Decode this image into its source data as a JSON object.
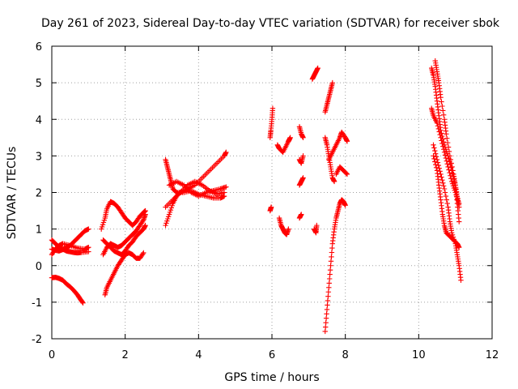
{
  "chart_data": {
    "type": "scatter",
    "title": "Day 261 of 2023, Sidereal Day-to-day VTEC variation (SDTVAR) for receiver sbok",
    "xlabel": "GPS time / hours",
    "ylabel": "SDTVAR / TECUs",
    "xlim": [
      0,
      12
    ],
    "ylim": [
      -2,
      6
    ],
    "xticks": [
      "0",
      "2",
      "4",
      "6",
      "8",
      "10",
      "12"
    ],
    "yticks": [
      "-2",
      "-1",
      "0",
      "1",
      "2",
      "3",
      "4",
      "5",
      "6"
    ],
    "grid": true,
    "marker": "+",
    "color": "#ff0000",
    "series": [
      {
        "points": [
          [
            0.0,
            -0.33
          ],
          [
            0.1,
            -0.32
          ],
          [
            0.2,
            -0.35
          ],
          [
            0.3,
            -0.4
          ],
          [
            0.4,
            -0.5
          ],
          [
            0.5,
            -0.58
          ],
          [
            0.6,
            -0.68
          ],
          [
            0.7,
            -0.8
          ],
          [
            0.78,
            -0.92
          ],
          [
            0.85,
            -1.02
          ]
        ]
      },
      {
        "points": [
          [
            0.0,
            0.45
          ],
          [
            0.1,
            0.42
          ],
          [
            0.2,
            0.4
          ],
          [
            0.3,
            0.44
          ],
          [
            0.4,
            0.5
          ],
          [
            0.5,
            0.55
          ],
          [
            0.6,
            0.65
          ],
          [
            0.7,
            0.75
          ],
          [
            0.8,
            0.85
          ],
          [
            0.9,
            0.95
          ],
          [
            1.0,
            1.0
          ]
        ]
      },
      {
        "points": [
          [
            0.0,
            0.7
          ],
          [
            0.1,
            0.6
          ],
          [
            0.2,
            0.5
          ],
          [
            0.3,
            0.45
          ],
          [
            0.4,
            0.4
          ],
          [
            0.5,
            0.38
          ],
          [
            0.6,
            0.36
          ],
          [
            0.7,
            0.35
          ],
          [
            0.8,
            0.36
          ],
          [
            1.0,
            0.38
          ]
        ]
      },
      {
        "points": [
          [
            0.0,
            0.3
          ],
          [
            0.1,
            0.45
          ],
          [
            0.2,
            0.55
          ],
          [
            0.3,
            0.6
          ],
          [
            0.5,
            0.55
          ],
          [
            0.7,
            0.48
          ],
          [
            0.9,
            0.45
          ],
          [
            1.0,
            0.5
          ]
        ]
      },
      {
        "points": [
          [
            1.35,
            1.0
          ],
          [
            1.45,
            1.3
          ],
          [
            1.5,
            1.55
          ],
          [
            1.6,
            1.75
          ],
          [
            1.7,
            1.7
          ],
          [
            1.8,
            1.6
          ],
          [
            1.9,
            1.45
          ],
          [
            2.0,
            1.3
          ],
          [
            2.1,
            1.2
          ],
          [
            2.2,
            1.1
          ],
          [
            2.3,
            1.2
          ],
          [
            2.4,
            1.35
          ],
          [
            2.5,
            1.45
          ],
          [
            2.55,
            1.5
          ]
        ]
      },
      {
        "points": [
          [
            1.4,
            0.3
          ],
          [
            1.5,
            0.5
          ],
          [
            1.6,
            0.6
          ],
          [
            1.7,
            0.55
          ],
          [
            1.8,
            0.5
          ],
          [
            1.9,
            0.55
          ],
          [
            2.0,
            0.65
          ],
          [
            2.1,
            0.75
          ],
          [
            2.2,
            0.85
          ],
          [
            2.3,
            0.95
          ],
          [
            2.4,
            1.1
          ],
          [
            2.5,
            1.25
          ],
          [
            2.55,
            1.4
          ]
        ]
      },
      {
        "points": [
          [
            1.45,
            -0.8
          ],
          [
            1.5,
            -0.6
          ],
          [
            1.6,
            -0.4
          ],
          [
            1.7,
            -0.2
          ],
          [
            1.8,
            0.0
          ],
          [
            1.9,
            0.15
          ],
          [
            2.0,
            0.3
          ],
          [
            2.1,
            0.35
          ],
          [
            2.2,
            0.3
          ],
          [
            2.3,
            0.2
          ],
          [
            2.4,
            0.2
          ],
          [
            2.5,
            0.35
          ]
        ]
      },
      {
        "points": [
          [
            1.4,
            0.7
          ],
          [
            1.5,
            0.6
          ],
          [
            1.6,
            0.5
          ],
          [
            1.7,
            0.4
          ],
          [
            1.8,
            0.35
          ],
          [
            1.9,
            0.3
          ],
          [
            2.0,
            0.4
          ],
          [
            2.1,
            0.55
          ],
          [
            2.2,
            0.65
          ],
          [
            2.3,
            0.8
          ],
          [
            2.4,
            0.9
          ],
          [
            2.5,
            1.0
          ],
          [
            2.55,
            1.1
          ]
        ]
      },
      {
        "points": [
          [
            3.1,
            2.9
          ],
          [
            3.15,
            2.7
          ],
          [
            3.2,
            2.5
          ],
          [
            3.25,
            2.3
          ],
          [
            3.3,
            2.1
          ],
          [
            3.4,
            2.0
          ],
          [
            3.6,
            2.0
          ],
          [
            3.8,
            2.05
          ],
          [
            4.0,
            1.95
          ],
          [
            4.2,
            1.9
          ],
          [
            4.4,
            1.85
          ],
          [
            4.6,
            1.85
          ],
          [
            4.7,
            1.9
          ]
        ]
      },
      {
        "points": [
          [
            3.1,
            1.1
          ],
          [
            3.2,
            1.4
          ],
          [
            3.3,
            1.7
          ],
          [
            3.4,
            1.9
          ],
          [
            3.5,
            2.0
          ],
          [
            3.7,
            2.1
          ],
          [
            3.9,
            2.2
          ],
          [
            4.1,
            2.4
          ],
          [
            4.3,
            2.6
          ],
          [
            4.5,
            2.8
          ],
          [
            4.7,
            3.0
          ],
          [
            4.75,
            3.1
          ]
        ]
      },
      {
        "points": [
          [
            3.2,
            2.2
          ],
          [
            3.4,
            2.3
          ],
          [
            3.6,
            2.2
          ],
          [
            3.8,
            2.0
          ],
          [
            4.0,
            1.9
          ],
          [
            4.2,
            2.0
          ],
          [
            4.4,
            2.05
          ],
          [
            4.6,
            2.1
          ],
          [
            4.75,
            2.15
          ]
        ]
      },
      {
        "points": [
          [
            3.1,
            1.6
          ],
          [
            3.3,
            1.8
          ],
          [
            3.5,
            2.0
          ],
          [
            3.7,
            2.2
          ],
          [
            3.9,
            2.3
          ],
          [
            4.1,
            2.2
          ],
          [
            4.3,
            2.05
          ],
          [
            4.5,
            1.95
          ],
          [
            4.7,
            2.0
          ]
        ]
      },
      {
        "points": [
          [
            5.95,
            3.5
          ],
          [
            5.97,
            3.7
          ],
          [
            6.0,
            4.0
          ],
          [
            6.02,
            4.3
          ]
        ]
      },
      {
        "points": [
          [
            5.95,
            1.5
          ],
          [
            5.98,
            1.6
          ]
        ]
      },
      {
        "points": [
          [
            6.15,
            3.3
          ],
          [
            6.2,
            3.2
          ],
          [
            6.3,
            3.1
          ],
          [
            6.4,
            3.3
          ],
          [
            6.5,
            3.5
          ],
          [
            6.45,
            3.4
          ]
        ]
      },
      {
        "points": [
          [
            6.2,
            1.3
          ],
          [
            6.25,
            1.1
          ],
          [
            6.3,
            1.0
          ],
          [
            6.35,
            0.9
          ],
          [
            6.4,
            0.85
          ],
          [
            6.45,
            1.0
          ]
        ]
      },
      {
        "points": [
          [
            6.75,
            3.8
          ],
          [
            6.8,
            3.6
          ],
          [
            6.85,
            3.5
          ]
        ]
      },
      {
        "points": [
          [
            6.75,
            2.9
          ],
          [
            6.8,
            2.8
          ],
          [
            6.85,
            3.0
          ]
        ]
      },
      {
        "points": [
          [
            6.75,
            2.2
          ],
          [
            6.8,
            2.3
          ],
          [
            6.85,
            2.4
          ]
        ]
      },
      {
        "points": [
          [
            6.75,
            1.3
          ],
          [
            6.8,
            1.4
          ]
        ]
      },
      {
        "points": [
          [
            7.1,
            5.1
          ],
          [
            7.15,
            5.2
          ],
          [
            7.2,
            5.3
          ],
          [
            7.25,
            5.4
          ]
        ]
      },
      {
        "points": [
          [
            7.15,
            1.0
          ],
          [
            7.2,
            0.9
          ],
          [
            7.22,
            1.1
          ]
        ]
      },
      {
        "points": [
          [
            7.45,
            4.2
          ],
          [
            7.5,
            4.4
          ],
          [
            7.55,
            4.6
          ],
          [
            7.6,
            4.8
          ],
          [
            7.65,
            5.0
          ]
        ]
      },
      {
        "points": [
          [
            7.45,
            3.5
          ],
          [
            7.5,
            3.3
          ],
          [
            7.55,
            3.0
          ],
          [
            7.6,
            2.7
          ],
          [
            7.65,
            2.4
          ],
          [
            7.7,
            2.3
          ]
        ]
      },
      {
        "points": [
          [
            7.45,
            -1.8
          ],
          [
            7.5,
            -1.2
          ],
          [
            7.55,
            -0.6
          ],
          [
            7.6,
            0.0
          ],
          [
            7.65,
            0.6
          ],
          [
            7.7,
            1.0
          ],
          [
            7.75,
            1.3
          ],
          [
            7.8,
            1.5
          ],
          [
            7.85,
            1.7
          ],
          [
            7.9,
            1.8
          ],
          [
            7.95,
            1.75
          ],
          [
            8.0,
            1.65
          ]
        ]
      },
      {
        "points": [
          [
            7.55,
            2.9
          ],
          [
            7.65,
            3.1
          ],
          [
            7.75,
            3.3
          ],
          [
            7.85,
            3.5
          ],
          [
            7.9,
            3.65
          ],
          [
            8.0,
            3.5
          ],
          [
            8.05,
            3.4
          ]
        ]
      },
      {
        "points": [
          [
            7.75,
            2.5
          ],
          [
            7.85,
            2.7
          ],
          [
            7.95,
            2.6
          ],
          [
            8.05,
            2.5
          ]
        ]
      },
      {
        "points": [
          [
            10.35,
            5.4
          ],
          [
            10.4,
            5.2
          ],
          [
            10.45,
            4.9
          ],
          [
            10.5,
            4.5
          ],
          [
            10.55,
            4.1
          ],
          [
            10.6,
            3.7
          ],
          [
            10.7,
            3.3
          ],
          [
            10.8,
            3.0
          ],
          [
            10.9,
            2.6
          ],
          [
            11.0,
            2.2
          ],
          [
            11.05,
            1.9
          ],
          [
            11.1,
            1.6
          ]
        ]
      },
      {
        "points": [
          [
            10.45,
            5.6
          ],
          [
            10.5,
            5.3
          ],
          [
            10.55,
            5.0
          ],
          [
            10.6,
            4.6
          ],
          [
            10.7,
            4.0
          ],
          [
            10.75,
            3.6
          ],
          [
            10.85,
            3.0
          ],
          [
            10.95,
            2.5
          ],
          [
            11.0,
            2.2
          ],
          [
            11.05,
            1.7
          ],
          [
            11.1,
            1.2
          ]
        ]
      },
      {
        "points": [
          [
            10.4,
            3.3
          ],
          [
            10.5,
            2.9
          ],
          [
            10.6,
            2.5
          ],
          [
            10.7,
            2.1
          ],
          [
            10.8,
            1.6
          ],
          [
            10.85,
            1.2
          ],
          [
            10.9,
            0.9
          ],
          [
            11.0,
            0.6
          ],
          [
            11.05,
            0.3
          ],
          [
            11.1,
            0.0
          ],
          [
            11.15,
            -0.4
          ]
        ]
      },
      {
        "points": [
          [
            10.4,
            3.0
          ],
          [
            10.5,
            2.6
          ],
          [
            10.55,
            2.2
          ],
          [
            10.6,
            1.8
          ],
          [
            10.65,
            1.4
          ],
          [
            10.7,
            1.1
          ],
          [
            10.75,
            0.9
          ],
          [
            10.85,
            0.8
          ],
          [
            10.95,
            0.7
          ],
          [
            11.05,
            0.6
          ],
          [
            11.1,
            0.5
          ]
        ]
      },
      {
        "points": [
          [
            10.35,
            4.3
          ],
          [
            10.4,
            4.1
          ],
          [
            10.5,
            3.9
          ],
          [
            10.6,
            3.5
          ],
          [
            10.7,
            3.1
          ],
          [
            10.8,
            2.7
          ],
          [
            10.9,
            2.3
          ],
          [
            11.0,
            2.0
          ],
          [
            11.1,
            1.7
          ]
        ]
      }
    ]
  }
}
